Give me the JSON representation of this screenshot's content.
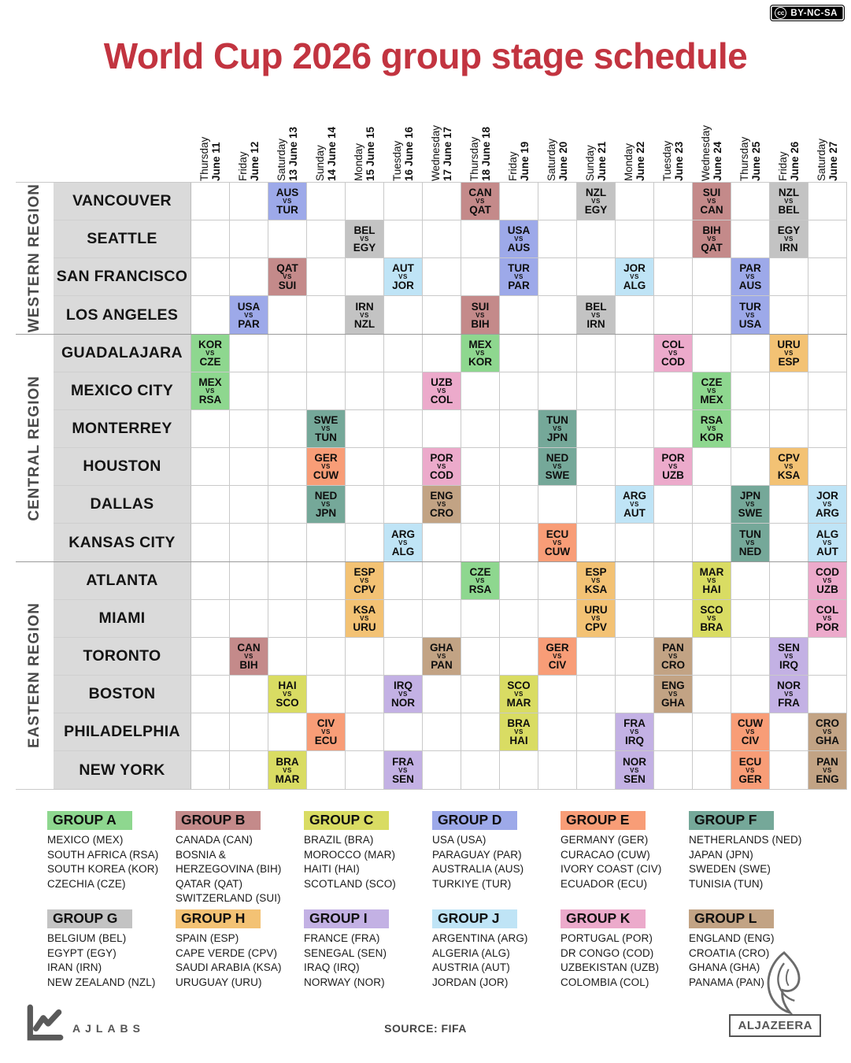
{
  "badge": {
    "cc_symbol": "cc",
    "label": "BY-NC-SA"
  },
  "title": "World Cup 2026 group stage schedule",
  "vs_label": "VS",
  "footer": {
    "ajlabs": "AJLABS",
    "source": "SOURCE: FIFA",
    "aljazeera": "ALJAZEERA"
  },
  "group_colors": {
    "A": "#8ed78f",
    "B": "#c48a8a",
    "C": "#d9dc63",
    "D": "#9da9e9",
    "E": "#f89d77",
    "F": "#75a899",
    "G": "#c3c3c3",
    "H": "#f3c274",
    "I": "#c3b1e4",
    "J": "#bfe4f6",
    "K": "#ecaacb",
    "L": "#c2a384"
  },
  "chart_data": {
    "type": "heatmap",
    "title": "World Cup 2026 group stage schedule",
    "x": [
      "June 11",
      "June 12",
      "June 13",
      "June 14",
      "June 15",
      "June 16",
      "June 17",
      "June 18",
      "June 19",
      "June 20",
      "June 21",
      "June 22",
      "June 23",
      "June 24",
      "June 25",
      "June 26",
      "June 27"
    ],
    "y": [
      "VANCOUVER",
      "SEATTLE",
      "SAN FRANCISCO",
      "LOS ANGELES",
      "GUADALAJARA",
      "MEXICO CITY",
      "MONTERREY",
      "HOUSTON",
      "DALLAS",
      "KANSAS CITY",
      "ATLANTA",
      "MIAMI",
      "TORONTO",
      "BOSTON",
      "PHILADELPHIA",
      "NEW YORK"
    ],
    "legend_position": "bottom",
    "source": "FIFA"
  },
  "dates": [
    {
      "weekday": "Thursday",
      "date": "June 11"
    },
    {
      "weekday": "Friday",
      "date": "June 12"
    },
    {
      "weekday": "Saturday",
      "date": "13 June 13"
    },
    {
      "weekday": "Sunday",
      "date": "14 June 14"
    },
    {
      "weekday": "Monday",
      "date": "15 June 15"
    },
    {
      "weekday": "Tuesday",
      "date": "16 June 16"
    },
    {
      "weekday": "Wednesday",
      "date": "17 June 17"
    },
    {
      "weekday": "Thursday",
      "date": "18 June 18"
    },
    {
      "weekday": "Friday",
      "date": "June 19"
    },
    {
      "weekday": "Saturday",
      "date": "June 20"
    },
    {
      "weekday": "Sunday",
      "date": "June 21"
    },
    {
      "weekday": "Monday",
      "date": "June 22"
    },
    {
      "weekday": "Tuesday",
      "date": "June 23"
    },
    {
      "weekday": "Wednesday",
      "date": "June 24"
    },
    {
      "weekday": "Thursday",
      "date": "June 25"
    },
    {
      "weekday": "Friday",
      "date": "June 26"
    },
    {
      "weekday": "Saturday",
      "date": "June 27"
    }
  ],
  "schedule": [
    {
      "region": "WESTERN REGION",
      "rows": [
        {
          "city": "VANCOUVER",
          "matches": [
            {
              "c": 2,
              "a": "AUS",
              "b": "TUR",
              "g": "D"
            },
            {
              "c": 7,
              "a": "CAN",
              "b": "QAT",
              "g": "B"
            },
            {
              "c": 10,
              "a": "NZL",
              "b": "EGY",
              "g": "G"
            },
            {
              "c": 13,
              "a": "SUI",
              "b": "CAN",
              "g": "B"
            },
            {
              "c": 15,
              "a": "NZL",
              "b": "BEL",
              "g": "G"
            }
          ]
        },
        {
          "city": "SEATTLE",
          "matches": [
            {
              "c": 4,
              "a": "BEL",
              "b": "EGY",
              "g": "G"
            },
            {
              "c": 8,
              "a": "USA",
              "b": "AUS",
              "g": "D"
            },
            {
              "c": 13,
              "a": "BIH",
              "b": "QAT",
              "g": "B"
            },
            {
              "c": 15,
              "a": "EGY",
              "b": "IRN",
              "g": "G"
            }
          ]
        },
        {
          "city": "SAN FRANCISCO",
          "matches": [
            {
              "c": 2,
              "a": "QAT",
              "b": "SUI",
              "g": "B"
            },
            {
              "c": 5,
              "a": "AUT",
              "b": "JOR",
              "g": "J"
            },
            {
              "c": 8,
              "a": "TUR",
              "b": "PAR",
              "g": "D"
            },
            {
              "c": 11,
              "a": "JOR",
              "b": "ALG",
              "g": "J"
            },
            {
              "c": 14,
              "a": "PAR",
              "b": "AUS",
              "g": "D"
            }
          ]
        },
        {
          "city": "LOS ANGELES",
          "matches": [
            {
              "c": 1,
              "a": "USA",
              "b": "PAR",
              "g": "D"
            },
            {
              "c": 4,
              "a": "IRN",
              "b": "NZL",
              "g": "G"
            },
            {
              "c": 7,
              "a": "SUI",
              "b": "BIH",
              "g": "B"
            },
            {
              "c": 10,
              "a": "BEL",
              "b": "IRN",
              "g": "G"
            },
            {
              "c": 14,
              "a": "TUR",
              "b": "USA",
              "g": "D"
            }
          ]
        }
      ]
    },
    {
      "region": "CENTRAL REGION",
      "rows": [
        {
          "city": "GUADALAJARA",
          "matches": [
            {
              "c": 0,
              "a": "KOR",
              "b": "CZE",
              "g": "A"
            },
            {
              "c": 7,
              "a": "MEX",
              "b": "KOR",
              "g": "A"
            },
            {
              "c": 12,
              "a": "COL",
              "b": "COD",
              "g": "K"
            },
            {
              "c": 15,
              "a": "URU",
              "b": "ESP",
              "g": "H"
            }
          ]
        },
        {
          "city": "MEXICO CITY",
          "matches": [
            {
              "c": 0,
              "a": "MEX",
              "b": "RSA",
              "g": "A"
            },
            {
              "c": 6,
              "a": "UZB",
              "b": "COL",
              "g": "K"
            },
            {
              "c": 13,
              "a": "CZE",
              "b": "MEX",
              "g": "A"
            }
          ]
        },
        {
          "city": "MONTERREY",
          "matches": [
            {
              "c": 3,
              "a": "SWE",
              "b": "TUN",
              "g": "F"
            },
            {
              "c": 9,
              "a": "TUN",
              "b": "JPN",
              "g": "F"
            },
            {
              "c": 13,
              "a": "RSA",
              "b": "KOR",
              "g": "A"
            }
          ]
        },
        {
          "city": "HOUSTON",
          "matches": [
            {
              "c": 3,
              "a": "GER",
              "b": "CUW",
              "g": "E"
            },
            {
              "c": 6,
              "a": "POR",
              "b": "COD",
              "g": "K"
            },
            {
              "c": 9,
              "a": "NED",
              "b": "SWE",
              "g": "F"
            },
            {
              "c": 12,
              "a": "POR",
              "b": "UZB",
              "g": "K"
            },
            {
              "c": 15,
              "a": "CPV",
              "b": "KSA",
              "g": "H"
            }
          ]
        },
        {
          "city": "DALLAS",
          "matches": [
            {
              "c": 3,
              "a": "NED",
              "b": "JPN",
              "g": "F"
            },
            {
              "c": 6,
              "a": "ENG",
              "b": "CRO",
              "g": "L"
            },
            {
              "c": 11,
              "a": "ARG",
              "b": "AUT",
              "g": "J"
            },
            {
              "c": 14,
              "a": "JPN",
              "b": "SWE",
              "g": "F"
            },
            {
              "c": 16,
              "a": "JOR",
              "b": "ARG",
              "g": "J"
            }
          ]
        },
        {
          "city": "KANSAS CITY",
          "matches": [
            {
              "c": 5,
              "a": "ARG",
              "b": "ALG",
              "g": "J"
            },
            {
              "c": 9,
              "a": "ECU",
              "b": "CUW",
              "g": "E"
            },
            {
              "c": 14,
              "a": "TUN",
              "b": "NED",
              "g": "F"
            },
            {
              "c": 16,
              "a": "ALG",
              "b": "AUT",
              "g": "J"
            }
          ]
        }
      ]
    },
    {
      "region": "EASTERN REGION",
      "rows": [
        {
          "city": "ATLANTA",
          "matches": [
            {
              "c": 4,
              "a": "ESP",
              "b": "CPV",
              "g": "H"
            },
            {
              "c": 7,
              "a": "CZE",
              "b": "RSA",
              "g": "A"
            },
            {
              "c": 10,
              "a": "ESP",
              "b": "KSA",
              "g": "H"
            },
            {
              "c": 13,
              "a": "MAR",
              "b": "HAI",
              "g": "C"
            },
            {
              "c": 16,
              "a": "COD",
              "b": "UZB",
              "g": "K"
            }
          ]
        },
        {
          "city": "MIAMI",
          "matches": [
            {
              "c": 4,
              "a": "KSA",
              "b": "URU",
              "g": "H"
            },
            {
              "c": 10,
              "a": "URU",
              "b": "CPV",
              "g": "H"
            },
            {
              "c": 13,
              "a": "SCO",
              "b": "BRA",
              "g": "C"
            },
            {
              "c": 16,
              "a": "COL",
              "b": "POR",
              "g": "K"
            }
          ]
        },
        {
          "city": "TORONTO",
          "matches": [
            {
              "c": 1,
              "a": "CAN",
              "b": "BIH",
              "g": "B"
            },
            {
              "c": 6,
              "a": "GHA",
              "b": "PAN",
              "g": "L"
            },
            {
              "c": 9,
              "a": "GER",
              "b": "CIV",
              "g": "E"
            },
            {
              "c": 12,
              "a": "PAN",
              "b": "CRO",
              "g": "L"
            },
            {
              "c": 15,
              "a": "SEN",
              "b": "IRQ",
              "g": "I"
            }
          ]
        },
        {
          "city": "BOSTON",
          "matches": [
            {
              "c": 2,
              "a": "HAI",
              "b": "SCO",
              "g": "C"
            },
            {
              "c": 5,
              "a": "IRQ",
              "b": "NOR",
              "g": "I"
            },
            {
              "c": 8,
              "a": "SCO",
              "b": "MAR",
              "g": "C"
            },
            {
              "c": 12,
              "a": "ENG",
              "b": "GHA",
              "g": "L"
            },
            {
              "c": 15,
              "a": "NOR",
              "b": "FRA",
              "g": "I"
            }
          ]
        },
        {
          "city": "PHILADELPHIA",
          "matches": [
            {
              "c": 3,
              "a": "CIV",
              "b": "ECU",
              "g": "E"
            },
            {
              "c": 8,
              "a": "BRA",
              "b": "HAI",
              "g": "C"
            },
            {
              "c": 11,
              "a": "FRA",
              "b": "IRQ",
              "g": "I"
            },
            {
              "c": 14,
              "a": "CUW",
              "b": "CIV",
              "g": "E"
            },
            {
              "c": 16,
              "a": "CRO",
              "b": "GHA",
              "g": "L"
            }
          ]
        },
        {
          "city": "NEW YORK",
          "matches": [
            {
              "c": 2,
              "a": "BRA",
              "b": "MAR",
              "g": "C"
            },
            {
              "c": 5,
              "a": "FRA",
              "b": "SEN",
              "g": "I"
            },
            {
              "c": 11,
              "a": "NOR",
              "b": "SEN",
              "g": "I"
            },
            {
              "c": 14,
              "a": "ECU",
              "b": "GER",
              "g": "E"
            },
            {
              "c": 16,
              "a": "PAN",
              "b": "ENG",
              "g": "L"
            }
          ]
        }
      ]
    }
  ],
  "legend": [
    {
      "key": "A",
      "label": "GROUP A",
      "teams": [
        "MEXICO (MEX)",
        "SOUTH AFRICA (RSA)",
        "SOUTH KOREA (KOR)",
        "CZECHIA (CZE)"
      ]
    },
    {
      "key": "B",
      "label": "GROUP B",
      "teams": [
        "CANADA (CAN)",
        "BOSNIA & HERZEGOVINA (BIH)",
        "QATAR (QAT)",
        "SWITZERLAND (SUI)"
      ]
    },
    {
      "key": "C",
      "label": "GROUP C",
      "teams": [
        "BRAZIL (BRA)",
        "MOROCCO (MAR)",
        "HAITI (HAI)",
        "SCOTLAND (SCO)"
      ]
    },
    {
      "key": "D",
      "label": "GROUP D",
      "teams": [
        "USA (USA)",
        "PARAGUAY (PAR)",
        "AUSTRALIA (AUS)",
        "TURKIYE (TUR)"
      ]
    },
    {
      "key": "E",
      "label": "GROUP E",
      "teams": [
        "GERMANY (GER)",
        "CURACAO (CUW)",
        "IVORY COAST (CIV)",
        "ECUADOR (ECU)"
      ]
    },
    {
      "key": "F",
      "label": "GROUP F",
      "teams": [
        "NETHERLANDS (NED)",
        "JAPAN (JPN)",
        "SWEDEN (SWE)",
        "TUNISIA (TUN)"
      ]
    },
    {
      "key": "G",
      "label": "GROUP G",
      "teams": [
        "BELGIUM (BEL)",
        "EGYPT (EGY)",
        "IRAN (IRN)",
        "NEW ZEALAND (NZL)"
      ]
    },
    {
      "key": "H",
      "label": "GROUP H",
      "teams": [
        "SPAIN (ESP)",
        "CAPE VERDE (CPV)",
        "SAUDI ARABIA (KSA)",
        "URUGUAY (URU)"
      ]
    },
    {
      "key": "I",
      "label": "GROUP I",
      "teams": [
        "FRANCE (FRA)",
        "SENEGAL (SEN)",
        "IRAQ (IRQ)",
        "NORWAY (NOR)"
      ]
    },
    {
      "key": "J",
      "label": "GROUP J",
      "teams": [
        "ARGENTINA (ARG)",
        "ALGERIA (ALG)",
        "AUSTRIA (AUT)",
        "JORDAN (JOR)"
      ]
    },
    {
      "key": "K",
      "label": "GROUP K",
      "teams": [
        "PORTUGAL (POR)",
        "DR CONGO (COD)",
        "UZBEKISTAN (UZB)",
        "COLOMBIA (COL)"
      ]
    },
    {
      "key": "L",
      "label": "GROUP L",
      "teams": [
        "ENGLAND (ENG)",
        "CROATIA (CRO)",
        "GHANA (GHA)",
        "PANAMA (PAN)"
      ]
    }
  ]
}
